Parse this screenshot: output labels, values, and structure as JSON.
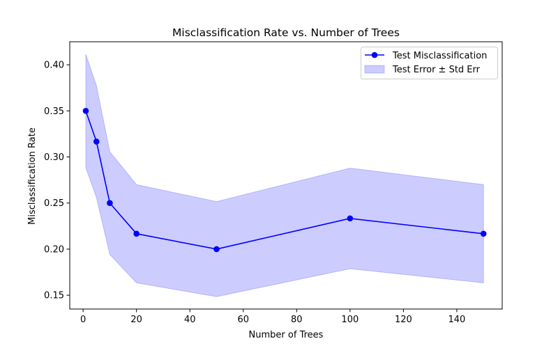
{
  "chart_data": {
    "type": "line",
    "title": "Misclassification Rate vs. Number of Trees",
    "xlabel": "Number of Trees",
    "ylabel": "Misclassification Rate",
    "xlim": [
      -5,
      157
    ],
    "ylim": [
      0.135,
      0.425
    ],
    "xticks": [
      0,
      20,
      40,
      60,
      80,
      100,
      120,
      140
    ],
    "xtick_labels": [
      "0",
      "20",
      "40",
      "60",
      "80",
      "100",
      "120",
      "140"
    ],
    "yticks": [
      0.15,
      0.2,
      0.25,
      0.3,
      0.35,
      0.4
    ],
    "ytick_labels": [
      "0.15",
      "0.20",
      "0.25",
      "0.30",
      "0.35",
      "0.40"
    ],
    "grid": false,
    "legend_position": "top-right",
    "series": [
      {
        "name": "Test Misclassification",
        "kind": "line-with-markers",
        "color": "#0000ff",
        "x": [
          1,
          5,
          10,
          20,
          50,
          100,
          150
        ],
        "y": [
          0.35,
          0.3167,
          0.25,
          0.2167,
          0.2,
          0.2333,
          0.2167
        ]
      },
      {
        "name": "Test Error ± Std Err",
        "kind": "band",
        "color": "#0000ff",
        "x": [
          1,
          5,
          10,
          20,
          50,
          100,
          150
        ],
        "lower": [
          0.2885,
          0.256,
          0.1942,
          0.1634,
          0.1484,
          0.1787,
          0.1634
        ],
        "upper": [
          0.4115,
          0.3774,
          0.3058,
          0.27,
          0.2516,
          0.2879,
          0.27
        ]
      }
    ]
  }
}
